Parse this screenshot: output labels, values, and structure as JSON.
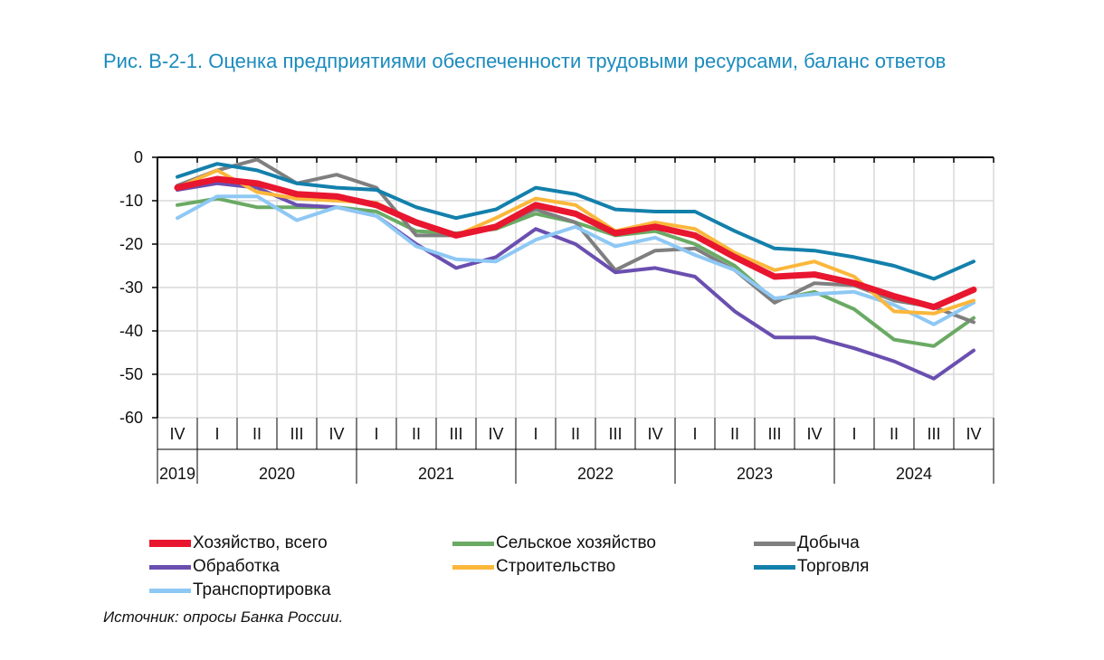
{
  "chart_data": {
    "type": "line",
    "title": "Рис. В-2-1. Оценка предприятиями обеспеченности трудовыми ресурсами, баланс ответов",
    "xlabel": "",
    "ylabel": "",
    "ylim": [
      -60,
      0
    ],
    "yticks": [
      0,
      -10,
      -20,
      -30,
      -40,
      -50,
      -60
    ],
    "grid": true,
    "legend_position": "bottom",
    "categories": [
      "IV",
      "I",
      "II",
      "III",
      "IV",
      "I",
      "II",
      "III",
      "IV",
      "I",
      "II",
      "III",
      "IV",
      "I",
      "II",
      "III",
      "IV",
      "I",
      "II",
      "III",
      "IV"
    ],
    "years": [
      {
        "label": "2019",
        "count": 1
      },
      {
        "label": "2020",
        "count": 4
      },
      {
        "label": "2021",
        "count": 4
      },
      {
        "label": "2022",
        "count": 4
      },
      {
        "label": "2023",
        "count": 4
      },
      {
        "label": "2024",
        "count": 4
      }
    ],
    "series": [
      {
        "name": "Сельское хозяйство",
        "color": "#6aaa64",
        "width": 4,
        "values": [
          -11,
          -9.5,
          -11.5,
          -11.5,
          -11.5,
          -12.5,
          -17,
          -17.5,
          -16.5,
          -13,
          -15,
          -18,
          -17,
          -20,
          -25,
          -33,
          -31,
          -35,
          -42,
          -43.5,
          -37
        ]
      },
      {
        "name": "Добыча",
        "color": "#7f7f7f",
        "width": 4,
        "values": [
          -6.5,
          -3,
          -0.5,
          -6,
          -4,
          -7,
          -18,
          -18,
          -16,
          -12,
          -15,
          -26,
          -21.5,
          -21,
          -26,
          -33.5,
          -29,
          -29.5,
          -33,
          -34.5,
          -38
        ]
      },
      {
        "name": "Обработка",
        "color": "#6a4fb0",
        "width": 4,
        "values": [
          -7.5,
          -6,
          -7,
          -11,
          -11.5,
          -13.5,
          -20,
          -25.5,
          -23,
          -16.5,
          -20,
          -26.5,
          -25.5,
          -27.5,
          -35.5,
          -41.5,
          -41.5,
          -44,
          -47,
          -51,
          -44.5
        ]
      },
      {
        "name": "Транспортировка",
        "color": "#8ec8f4",
        "width": 4,
        "values": [
          -14,
          -9,
          -9,
          -14.5,
          -11.5,
          -13.5,
          -20.5,
          -23.5,
          -24,
          -19,
          -16,
          -20.5,
          -18.5,
          -22.5,
          -26,
          -32.5,
          -31.5,
          -31,
          -34,
          -38.5,
          -33.5
        ]
      },
      {
        "name": "Строительство",
        "color": "#fbb73b",
        "width": 4,
        "values": [
          -7,
          -3,
          -8,
          -9.5,
          -10,
          -10.5,
          -15,
          -18,
          -14,
          -9.5,
          -11,
          -17,
          -15,
          -16.5,
          -22,
          -26,
          -24,
          -27.5,
          -35.5,
          -36,
          -33
        ]
      },
      {
        "name": "Торговля",
        "color": "#1380ab",
        "width": 4,
        "values": [
          -4.5,
          -1.5,
          -3,
          -6,
          -7,
          -7.5,
          -11.5,
          -14,
          -12,
          -7,
          -8.5,
          -12,
          -12.5,
          -12.5,
          -17,
          -21,
          -21.5,
          -23,
          -25,
          -28,
          -24
        ]
      },
      {
        "name": "Хозяйство, всего",
        "color": "#e8162f",
        "width": 7,
        "values": [
          -7,
          -5,
          -6,
          -8.5,
          -9,
          -11,
          -15,
          -18,
          -16,
          -11,
          -13,
          -17.5,
          -16,
          -18,
          -23,
          -27.5,
          -27,
          -29,
          -32,
          -34.5,
          -30.5
        ]
      }
    ],
    "legend_order": [
      "Хозяйство, всего",
      "Сельское хозяйство",
      "Добыча",
      "Обработка",
      "Строительство",
      "Торговля",
      "Транспортировка"
    ]
  },
  "source": "Источник: опросы Банка России."
}
